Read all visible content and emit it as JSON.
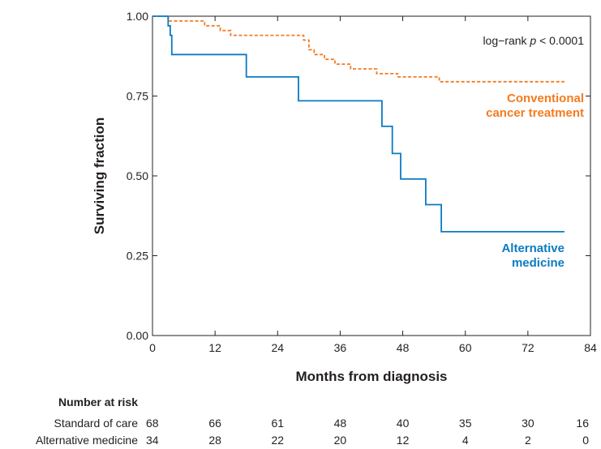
{
  "chart_data": {
    "type": "line",
    "subtype": "kaplan-meier step survival curve",
    "xlabel": "Months from diagnosis",
    "ylabel": "Surviving fraction",
    "xlim": [
      0,
      84
    ],
    "ylim": [
      0,
      1
    ],
    "x_ticks": [
      0,
      12,
      24,
      36,
      48,
      60,
      72,
      84
    ],
    "x_tick_labels": [
      "0",
      "12",
      "24",
      "36",
      "48",
      "60",
      "72",
      "84"
    ],
    "y_ticks": [
      0,
      0.25,
      0.5,
      0.75,
      1
    ],
    "y_tick_labels": [
      "0.00",
      "0.25",
      "0.50",
      "0.75",
      "1.00"
    ],
    "grid": false,
    "annotation": {
      "prefix": "log−rank ",
      "italic": "p",
      "suffix": " < 0.0001"
    },
    "series": [
      {
        "label_lines": [
          "Conventional",
          "cancer treatment"
        ],
        "color": "#f47b20",
        "line_style": "dashed",
        "x": [
          0,
          3,
          3,
          10,
          10,
          13,
          13,
          15,
          15,
          29,
          29,
          30,
          30,
          31,
          31,
          33,
          33,
          35,
          35,
          38,
          38,
          43,
          43,
          47,
          47,
          55,
          55,
          79
        ],
        "y": [
          1.0,
          1.0,
          0.985,
          0.985,
          0.97,
          0.97,
          0.955,
          0.955,
          0.94,
          0.94,
          0.925,
          0.925,
          0.895,
          0.895,
          0.88,
          0.88,
          0.865,
          0.865,
          0.85,
          0.85,
          0.835,
          0.835,
          0.82,
          0.82,
          0.81,
          0.81,
          0.795,
          0.795
        ]
      },
      {
        "label_lines": [
          "Alternative",
          "medicine"
        ],
        "color": "#0b7bc1",
        "line_style": "solid",
        "x": [
          0,
          3,
          3,
          3.4,
          3.4,
          3.7,
          3.7,
          18,
          18,
          28,
          28,
          44,
          44,
          46,
          46,
          47.6,
          47.6,
          52.4,
          52.4,
          55.4,
          55.4,
          79
        ],
        "y": [
          1.0,
          1.0,
          0.97,
          0.97,
          0.94,
          0.94,
          0.88,
          0.88,
          0.81,
          0.81,
          0.735,
          0.735,
          0.655,
          0.655,
          0.57,
          0.57,
          0.49,
          0.49,
          0.41,
          0.41,
          0.325,
          0.325
        ]
      }
    ],
    "risk_table": {
      "title": "Number at risk",
      "time_points": [
        0,
        12,
        24,
        36,
        48,
        60,
        72,
        84
      ],
      "rows": [
        {
          "label": "Standard of care",
          "values": [
            "68",
            "66",
            "61",
            "48",
            "40",
            "35",
            "30",
            "16"
          ]
        },
        {
          "label": "Alternative medicine",
          "values": [
            "34",
            "28",
            "22",
            "20",
            "12",
            "4",
            "2",
            "0"
          ]
        }
      ]
    }
  }
}
